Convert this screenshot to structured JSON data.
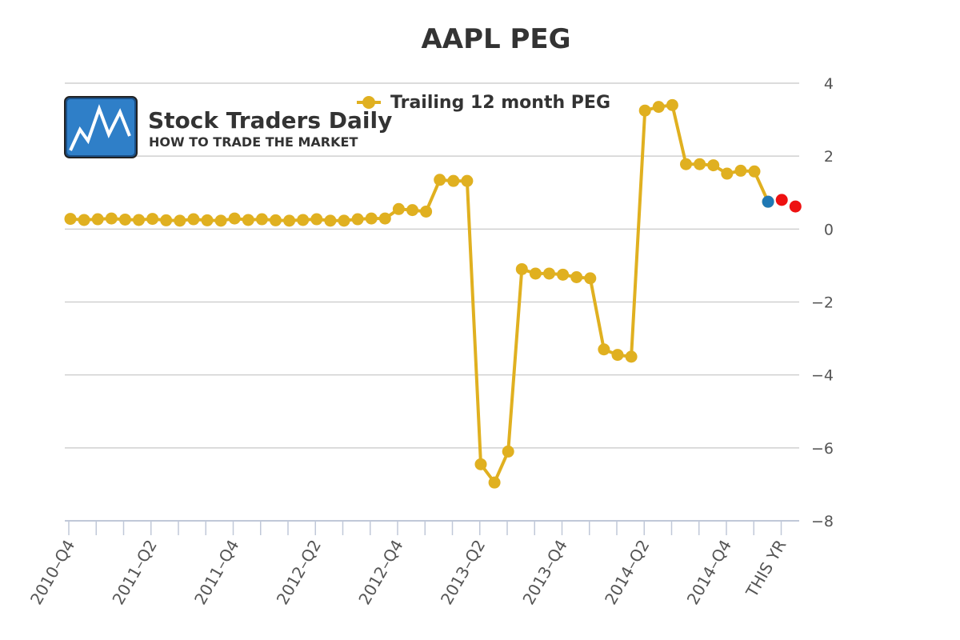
{
  "chart_data": {
    "type": "line",
    "title": "AAPL PEG",
    "xlabel": "",
    "ylabel": "",
    "legend_position": "top-center",
    "ylim": [
      -8,
      4
    ],
    "y_ticks": [
      "4",
      "2",
      "0",
      "−2",
      "−4",
      "−6",
      "−8"
    ],
    "y_tick_values": [
      4,
      2,
      0,
      -2,
      -4,
      -6,
      -8
    ],
    "y_axis_side": "right",
    "grid": true,
    "x_tick_labels": [
      {
        "index": 0,
        "label": "2010–Q4"
      },
      {
        "index": 6,
        "label": "2011–Q2"
      },
      {
        "index": 12,
        "label": "2011–Q4"
      },
      {
        "index": 18,
        "label": "2012–Q2"
      },
      {
        "index": 24,
        "label": "2012–Q4"
      },
      {
        "index": 30,
        "label": "2013–Q2"
      },
      {
        "index": 36,
        "label": "2013–Q4"
      },
      {
        "index": 42,
        "label": "2014–Q2"
      },
      {
        "index": 48,
        "label": "2014–Q4"
      },
      {
        "index": 52,
        "label": "THIS YR"
      }
    ],
    "category_count": 54,
    "series": [
      {
        "name": "Trailing 12 month PEG",
        "color": "#e0b020",
        "values": [
          0.28,
          0.25,
          0.27,
          0.29,
          0.26,
          0.25,
          0.28,
          0.24,
          0.23,
          0.27,
          0.24,
          0.23,
          0.29,
          0.25,
          0.27,
          0.24,
          0.23,
          0.25,
          0.27,
          0.23,
          0.23,
          0.27,
          0.29,
          0.29,
          0.55,
          0.52,
          0.48,
          1.35,
          1.32,
          1.32,
          -6.45,
          -6.95,
          -6.1,
          -1.1,
          -1.22,
          -1.22,
          -1.25,
          -1.32,
          -1.35,
          -3.3,
          -3.45,
          -3.5,
          3.25,
          3.35,
          3.4,
          1.78,
          1.78,
          1.75,
          1.52,
          1.6,
          1.58,
          0.75,
          null,
          null
        ]
      }
    ],
    "extra_points": [
      {
        "index": 51,
        "value": 0.75,
        "color": "#1f78b4"
      },
      {
        "index": 52,
        "value": 0.8,
        "color": "#ee1111"
      },
      {
        "index": 53,
        "value": 0.62,
        "color": "#ee1111"
      }
    ]
  },
  "logo": {
    "title": "Stock Traders Daily",
    "subtitle": "HOW TO TRADE THE MARKET"
  }
}
